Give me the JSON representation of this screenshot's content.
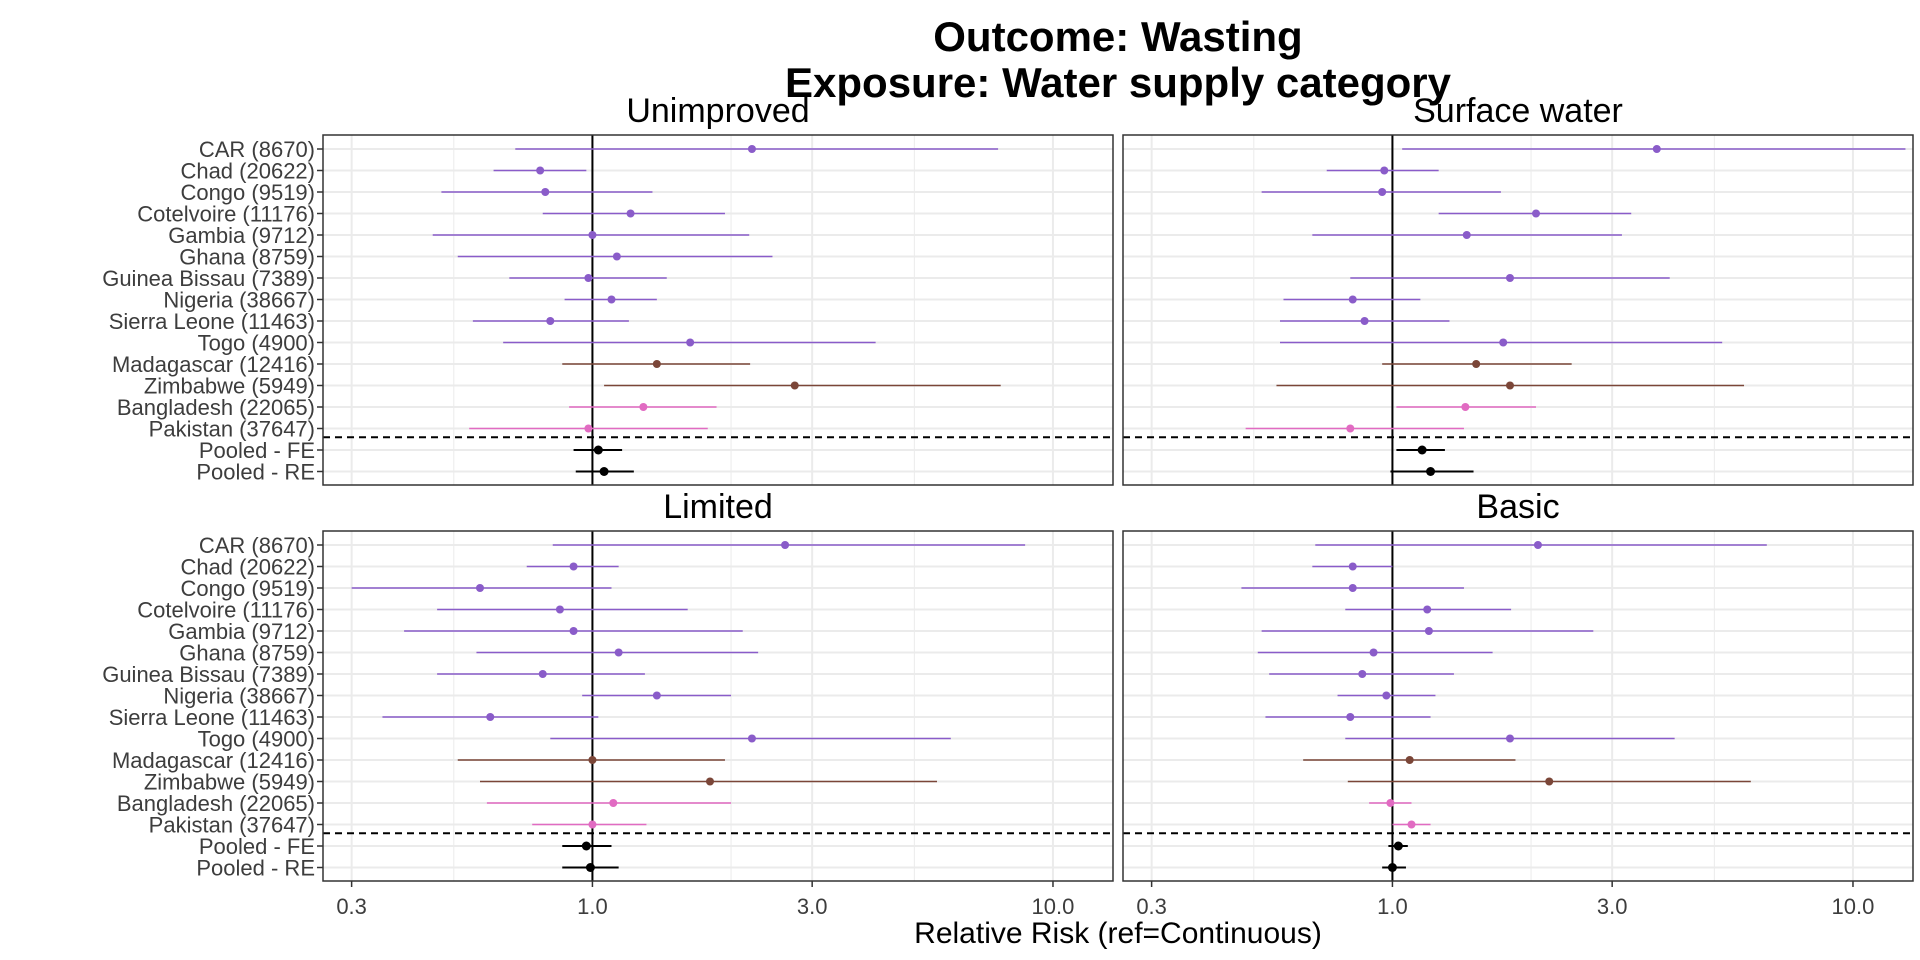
{
  "chart_data": {
    "type": "forest",
    "title_lines": [
      "Outcome: Wasting",
      "Exposure: Water supply category"
    ],
    "xlabel": "Relative Risk (ref=Continuous)",
    "x_scale": "log",
    "xlim": [
      0.26,
      13.5
    ],
    "x_ticks": [
      {
        "value": 0.3,
        "label": "0.3"
      },
      {
        "value": 1.0,
        "label": "1.0"
      },
      {
        "value": 3.0,
        "label": "3.0"
      },
      {
        "value": 10.0,
        "label": "10.0"
      }
    ],
    "reference_line": 1.0,
    "colors": {
      "purple": "#8a5cc9",
      "brown": "#7b4638",
      "pink": "#e16bc2",
      "black": "#000000",
      "grid": "#ebebeb",
      "border": "#333333"
    },
    "studies": [
      {
        "label": "CAR (8670)",
        "color": "purple"
      },
      {
        "label": "Chad (20622)",
        "color": "purple"
      },
      {
        "label": "Congo (9519)",
        "color": "purple"
      },
      {
        "label": "Cotelvoire (11176)",
        "color": "purple"
      },
      {
        "label": "Gambia (9712)",
        "color": "purple"
      },
      {
        "label": "Ghana (8759)",
        "color": "purple"
      },
      {
        "label": "Guinea Bissau (7389)",
        "color": "purple"
      },
      {
        "label": "Nigeria (38667)",
        "color": "purple"
      },
      {
        "label": "Sierra Leone (11463)",
        "color": "purple"
      },
      {
        "label": "Togo (4900)",
        "color": "purple"
      },
      {
        "label": "Madagascar (12416)",
        "color": "brown"
      },
      {
        "label": "Zimbabwe (5949)",
        "color": "brown"
      },
      {
        "label": "Bangladesh (22065)",
        "color": "pink"
      },
      {
        "label": "Pakistan (37647)",
        "color": "pink"
      },
      {
        "label": "Pooled - FE",
        "color": "black"
      },
      {
        "label": "Pooled - RE",
        "color": "black"
      }
    ],
    "panels": [
      {
        "name": "Unimproved",
        "estimates": [
          {
            "rr": 2.22,
            "lo": 0.68,
            "hi": 7.6
          },
          {
            "rr": 0.77,
            "lo": 0.61,
            "hi": 0.97
          },
          {
            "rr": 0.79,
            "lo": 0.47,
            "hi": 1.35
          },
          {
            "rr": 1.21,
            "lo": 0.78,
            "hi": 1.94
          },
          {
            "rr": 1.0,
            "lo": 0.45,
            "hi": 2.19
          },
          {
            "rr": 1.13,
            "lo": 0.51,
            "hi": 2.46
          },
          {
            "rr": 0.98,
            "lo": 0.66,
            "hi": 1.45
          },
          {
            "rr": 1.1,
            "lo": 0.87,
            "hi": 1.38
          },
          {
            "rr": 0.81,
            "lo": 0.55,
            "hi": 1.2
          },
          {
            "rr": 1.63,
            "lo": 0.64,
            "hi": 4.12
          },
          {
            "rr": 1.38,
            "lo": 0.86,
            "hi": 2.2
          },
          {
            "rr": 2.75,
            "lo": 1.06,
            "hi": 7.7
          },
          {
            "rr": 1.29,
            "lo": 0.89,
            "hi": 1.86
          },
          {
            "rr": 0.98,
            "lo": 0.54,
            "hi": 1.78
          },
          {
            "rr": 1.03,
            "lo": 0.91,
            "hi": 1.16
          },
          {
            "rr": 1.06,
            "lo": 0.92,
            "hi": 1.23
          }
        ]
      },
      {
        "name": "Surface water",
        "estimates": [
          {
            "rr": 3.75,
            "lo": 1.05,
            "hi": 13.0
          },
          {
            "rr": 0.96,
            "lo": 0.72,
            "hi": 1.26
          },
          {
            "rr": 0.95,
            "lo": 0.52,
            "hi": 1.72
          },
          {
            "rr": 2.05,
            "lo": 1.26,
            "hi": 3.3
          },
          {
            "rr": 1.45,
            "lo": 0.67,
            "hi": 3.15
          },
          {
            "rr": 1.8,
            "lo": 0.81,
            "hi": 4.0
          },
          {
            "rr": 0.82,
            "lo": 0.58,
            "hi": 1.15
          },
          {
            "rr": 0.87,
            "lo": 0.57,
            "hi": 1.33
          },
          {
            "rr": 1.74,
            "lo": 0.57,
            "hi": 5.2
          },
          {
            "rr": 1.52,
            "lo": 0.95,
            "hi": 2.45
          },
          {
            "rr": 1.8,
            "lo": 0.56,
            "hi": 5.8
          },
          {
            "rr": 1.44,
            "lo": 1.02,
            "hi": 2.05
          },
          {
            "rr": 0.81,
            "lo": 0.48,
            "hi": 1.43
          },
          {
            "rr": 1.16,
            "lo": 1.02,
            "hi": 1.3
          },
          {
            "rr": 1.21,
            "lo": 0.99,
            "hi": 1.5
          }
        ],
        "skip_rows": [
          5
        ]
      },
      {
        "name": "Limited",
        "estimates": [
          {
            "rr": 2.62,
            "lo": 0.82,
            "hi": 8.7
          },
          {
            "rr": 0.91,
            "lo": 0.72,
            "hi": 1.14
          },
          {
            "rr": 0.57,
            "lo": 0.3,
            "hi": 1.1
          },
          {
            "rr": 0.85,
            "lo": 0.46,
            "hi": 1.61
          },
          {
            "rr": 0.91,
            "lo": 0.39,
            "hi": 2.12
          },
          {
            "rr": 1.14,
            "lo": 0.56,
            "hi": 2.29
          },
          {
            "rr": 0.78,
            "lo": 0.46,
            "hi": 1.3
          },
          {
            "rr": 1.38,
            "lo": 0.95,
            "hi": 2.0
          },
          {
            "rr": 0.6,
            "lo": 0.35,
            "hi": 1.03
          },
          {
            "rr": 2.22,
            "lo": 0.81,
            "hi": 6.0
          },
          {
            "rr": 1.0,
            "lo": 0.51,
            "hi": 1.94
          },
          {
            "rr": 1.8,
            "lo": 0.57,
            "hi": 5.6
          },
          {
            "rr": 1.11,
            "lo": 0.59,
            "hi": 2.0
          },
          {
            "rr": 1.0,
            "lo": 0.74,
            "hi": 1.31
          },
          {
            "rr": 0.97,
            "lo": 0.86,
            "hi": 1.1
          },
          {
            "rr": 0.99,
            "lo": 0.86,
            "hi": 1.14
          }
        ]
      },
      {
        "name": "Basic",
        "estimates": [
          {
            "rr": 2.07,
            "lo": 0.68,
            "hi": 6.5
          },
          {
            "rr": 0.82,
            "lo": 0.67,
            "hi": 1.0
          },
          {
            "rr": 0.82,
            "lo": 0.47,
            "hi": 1.43
          },
          {
            "rr": 1.19,
            "lo": 0.79,
            "hi": 1.81
          },
          {
            "rr": 1.2,
            "lo": 0.52,
            "hi": 2.73
          },
          {
            "rr": 0.91,
            "lo": 0.51,
            "hi": 1.65
          },
          {
            "rr": 0.86,
            "lo": 0.54,
            "hi": 1.36
          },
          {
            "rr": 0.97,
            "lo": 0.76,
            "hi": 1.24
          },
          {
            "rr": 0.81,
            "lo": 0.53,
            "hi": 1.21
          },
          {
            "rr": 1.8,
            "lo": 0.79,
            "hi": 4.1
          },
          {
            "rr": 1.09,
            "lo": 0.64,
            "hi": 1.85
          },
          {
            "rr": 2.19,
            "lo": 0.8,
            "hi": 6.0
          },
          {
            "rr": 0.99,
            "lo": 0.89,
            "hi": 1.1
          },
          {
            "rr": 1.1,
            "lo": 1.0,
            "hi": 1.21
          },
          {
            "rr": 1.03,
            "lo": 0.98,
            "hi": 1.08
          },
          {
            "rr": 1.0,
            "lo": 0.95,
            "hi": 1.07
          }
        ]
      }
    ]
  }
}
